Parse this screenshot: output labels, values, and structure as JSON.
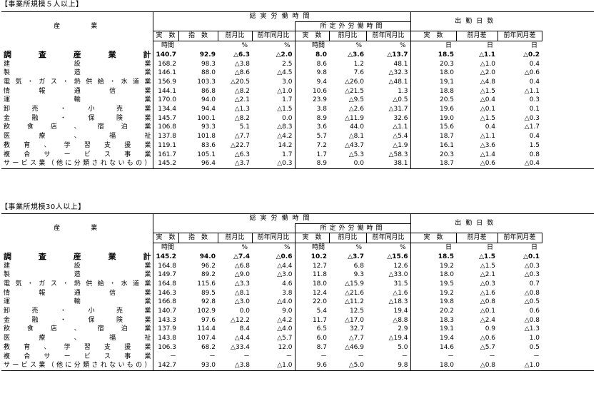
{
  "tables": [
    {
      "title": "【事業所規模５人以上】",
      "headers": {
        "industry": "産　　　業",
        "total_hours": "総実労働時間",
        "overtime_hours": "所定外労働時間",
        "days": "出勤日数",
        "cols": [
          "実　数",
          "指　数",
          "前月比",
          "前年同月比",
          "実　数",
          "前月比",
          "前年同月比",
          "実　数",
          "前月差",
          "前年同月差"
        ],
        "units": [
          "時間",
          "",
          "%",
          "%",
          "時間",
          "%",
          "%",
          "日",
          "日",
          "日"
        ]
      },
      "rows": [
        {
          "name": "調査産業計",
          "values": [
            "140.7",
            "92.9",
            "△6.3",
            "△2.0",
            "8.0",
            "△3.6",
            "△13.7",
            "18.5",
            "△1.1",
            "△0.2"
          ]
        },
        {
          "name": "建設業",
          "values": [
            "168.2",
            "98.3",
            "△3.8",
            "2.5",
            "8.6",
            "1.2",
            "48.1",
            "20.3",
            "△1.0",
            "0.4"
          ]
        },
        {
          "name": "製造業",
          "values": [
            "146.1",
            "88.0",
            "△8.6",
            "△4.5",
            "9.8",
            "7.6",
            "△32.3",
            "18.0",
            "△2.0",
            "△0.6"
          ]
        },
        {
          "name": "電気・ガス・熱供給・水道業",
          "values": [
            "156.9",
            "103.3",
            "△20.5",
            "3.0",
            "9.4",
            "△26.0",
            "△48.1",
            "19.1",
            "△4.8",
            "0.4"
          ]
        },
        {
          "name": "情報通信業",
          "values": [
            "144.1",
            "86.8",
            "△8.2",
            "△1.0",
            "10.6",
            "△21.5",
            "1.3",
            "18.8",
            "△1.5",
            "△1.1"
          ]
        },
        {
          "name": "運輸業",
          "values": [
            "170.0",
            "94.0",
            "△2.1",
            "1.7",
            "23.9",
            "△9.5",
            "△0.5",
            "20.5",
            "△0.4",
            "0.3"
          ]
        },
        {
          "name": "卸売・小売業",
          "values": [
            "134.4",
            "94.4",
            "△1.3",
            "△1.5",
            "3.8",
            "△2.6",
            "△31.7",
            "19.6",
            "△0.1",
            "0.1"
          ]
        },
        {
          "name": "金融・保険業",
          "values": [
            "145.7",
            "100.1",
            "△8.2",
            "0.0",
            "8.9",
            "△11.9",
            "32.6",
            "19.0",
            "△1.5",
            "△0.3"
          ]
        },
        {
          "name": "飲食店、宿泊業",
          "values": [
            "106.8",
            "93.3",
            "5.1",
            "△8.3",
            "3.6",
            "44.0",
            "△1.1",
            "15.6",
            "0.4",
            "△1.7"
          ]
        },
        {
          "name": "医療、福祉",
          "values": [
            "137.8",
            "101.8",
            "△7.7",
            "△4.2",
            "5.7",
            "△8.1",
            "△5.4",
            "18.7",
            "△1.1",
            "0.4"
          ]
        },
        {
          "name": "教育、学習支援業",
          "values": [
            "119.1",
            "83.6",
            "△22.7",
            "14.2",
            "7.2",
            "△43.7",
            "△1.9",
            "16.1",
            "△3.6",
            "1.5"
          ]
        },
        {
          "name": "複合サービス事業",
          "values": [
            "161.7",
            "105.1",
            "△6.3",
            "1.7",
            "1.7",
            "△5.3",
            "△58.3",
            "20.3",
            "△1.4",
            "0.8"
          ]
        },
        {
          "name": "サービス業（他に分類されないもの）",
          "values": [
            "145.2",
            "96.4",
            "△3.7",
            "△0.3",
            "8.9",
            "0.0",
            "38.1",
            "18.7",
            "△0.6",
            "△0.4"
          ]
        }
      ]
    },
    {
      "title": "【事業所規模30人以上】",
      "headers": {
        "industry": "産　　　業",
        "total_hours": "総実労働時間",
        "overtime_hours": "所定外労働時間",
        "days": "出勤日数",
        "cols": [
          "実　数",
          "指　数",
          "前月比",
          "前年同月比",
          "実　数",
          "前月比",
          "前年同月比",
          "実　数",
          "前月差",
          "前年同月差"
        ],
        "units": [
          "時間",
          "",
          "%",
          "%",
          "時間",
          "%",
          "%",
          "日",
          "日",
          "日"
        ]
      },
      "rows": [
        {
          "name": "調査産業計",
          "values": [
            "145.2",
            "94.0",
            "△7.4",
            "△0.6",
            "10.2",
            "△3.7",
            "△15.6",
            "18.5",
            "△1.5",
            "△0.1"
          ]
        },
        {
          "name": "建設業",
          "values": [
            "164.8",
            "96.2",
            "△6.8",
            "△4.4",
            "12.7",
            "6.8",
            "12.6",
            "19.2",
            "△1.5",
            "△0.3"
          ]
        },
        {
          "name": "製造業",
          "values": [
            "149.7",
            "89.2",
            "△9.0",
            "△3.0",
            "11.8",
            "9.3",
            "△33.0",
            "18.0",
            "△2.1",
            "△0.3"
          ]
        },
        {
          "name": "電気・ガス・熱供給・水道業",
          "values": [
            "164.8",
            "115.6",
            "△3.3",
            "4.6",
            "18.0",
            "△15.9",
            "31.5",
            "19.5",
            "△0.3",
            "0.7"
          ]
        },
        {
          "name": "情報通信業",
          "values": [
            "146.3",
            "89.5",
            "△8.1",
            "3.8",
            "12.4",
            "△21.6",
            "△1.6",
            "19.2",
            "△1.6",
            "△0.8"
          ]
        },
        {
          "name": "運輸業",
          "values": [
            "166.8",
            "92.8",
            "△3.0",
            "△4.0",
            "22.0",
            "△11.2",
            "△18.3",
            "19.8",
            "△0.8",
            "△0.5"
          ]
        },
        {
          "name": "卸売・小売業",
          "values": [
            "140.7",
            "102.9",
            "0.0",
            "9.0",
            "5.4",
            "12.5",
            "19.4",
            "20.2",
            "△0.1",
            "0.6"
          ]
        },
        {
          "name": "金融・保険業",
          "values": [
            "143.3",
            "97.6",
            "△12.2",
            "△4.2",
            "11.7",
            "△17.0",
            "△8.8",
            "18.3",
            "△2.4",
            "△0.8"
          ]
        },
        {
          "name": "飲食店、宿泊業",
          "values": [
            "137.9",
            "114.4",
            "8.4",
            "△4.0",
            "6.5",
            "32.7",
            "2.9",
            "19.1",
            "0.9",
            "△1.3"
          ]
        },
        {
          "name": "医療、福祉",
          "values": [
            "143.8",
            "107.4",
            "△4.4",
            "△5.7",
            "6.0",
            "△7.7",
            "△19.4",
            "19.4",
            "△0.6",
            "1.0"
          ]
        },
        {
          "name": "教育、学習支援業",
          "values": [
            "106.3",
            "68.2",
            "△33.4",
            "12.0",
            "8.7",
            "△46.9",
            "5.0",
            "14.6",
            "△5.7",
            "0.5"
          ]
        },
        {
          "name": "複合サービス事業",
          "values": [
            "－",
            "－",
            "－",
            "－",
            "－",
            "－",
            "－",
            "－",
            "－",
            "－"
          ]
        },
        {
          "name": "サービス業（他に分類されないもの）",
          "values": [
            "142.7",
            "93.0",
            "△3.8",
            "△1.0",
            "9.6",
            "△5.0",
            "9.8",
            "18.0",
            "△0.8",
            "△1.0"
          ]
        }
      ]
    }
  ]
}
